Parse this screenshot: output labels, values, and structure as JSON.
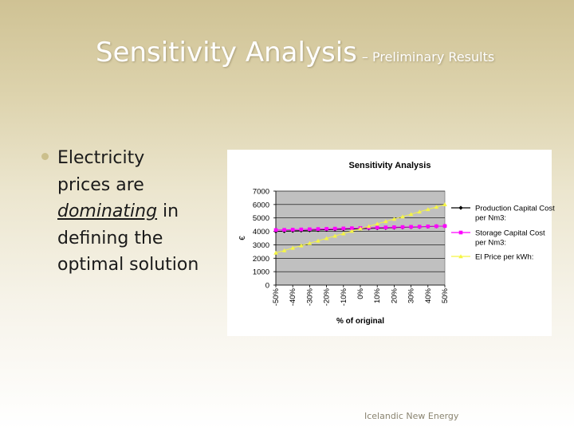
{
  "slide": {
    "title": "Sensitivity Analysis",
    "subtitle": "– Preliminary Results",
    "bullet": {
      "part1": "Electricity prices are",
      "emphasis": "dominating",
      "part2": "in defining the optimal solution"
    },
    "footer": "Icelandic New Energy"
  },
  "colors": {
    "production": "#000000",
    "storage": "#ff00ff",
    "elprice": "#f5f545",
    "plot_bg": "#c0c0c0"
  },
  "chart_data": {
    "type": "line",
    "title": "Sensitivity Analysis",
    "xlabel": "% of original",
    "ylabel": "€",
    "ylim": [
      0,
      7000
    ],
    "yticks": [
      "7000",
      "6000",
      "5000",
      "4000",
      "3000",
      "2000",
      "1000",
      "0"
    ],
    "x": [
      -50,
      -45,
      -40,
      -35,
      -30,
      -25,
      -20,
      -15,
      -10,
      -5,
      0,
      5,
      10,
      15,
      20,
      25,
      30,
      35,
      40,
      45,
      50
    ],
    "xtick_labels": [
      "-50%",
      "-40%",
      "-30%",
      "-20%",
      "-10%",
      "0%",
      "10%",
      "20%",
      "30%",
      "40%",
      "50%"
    ],
    "grid": true,
    "legend_position": "right",
    "series": [
      {
        "name": "Production Capital Cost per Nm3:",
        "marker": "diamond",
        "values": [
          4000,
          4020,
          4040,
          4060,
          4080,
          4100,
          4120,
          4140,
          4160,
          4180,
          4200,
          4220,
          4240,
          4260,
          4280,
          4300,
          4320,
          4340,
          4360,
          4380,
          4400
        ]
      },
      {
        "name": "Storage Capital Cost per Nm3:",
        "marker": "square",
        "values": [
          4100,
          4115,
          4130,
          4145,
          4160,
          4175,
          4190,
          4205,
          4220,
          4235,
          4250,
          4265,
          4280,
          4295,
          4310,
          4325,
          4340,
          4355,
          4370,
          4385,
          4400
        ]
      },
      {
        "name": "El Price per kWh:",
        "marker": "triangle",
        "values": [
          2400,
          2580,
          2760,
          2940,
          3120,
          3300,
          3480,
          3660,
          3840,
          4020,
          4200,
          4380,
          4560,
          4740,
          4920,
          5100,
          5280,
          5460,
          5640,
          5820,
          6000
        ]
      }
    ]
  }
}
